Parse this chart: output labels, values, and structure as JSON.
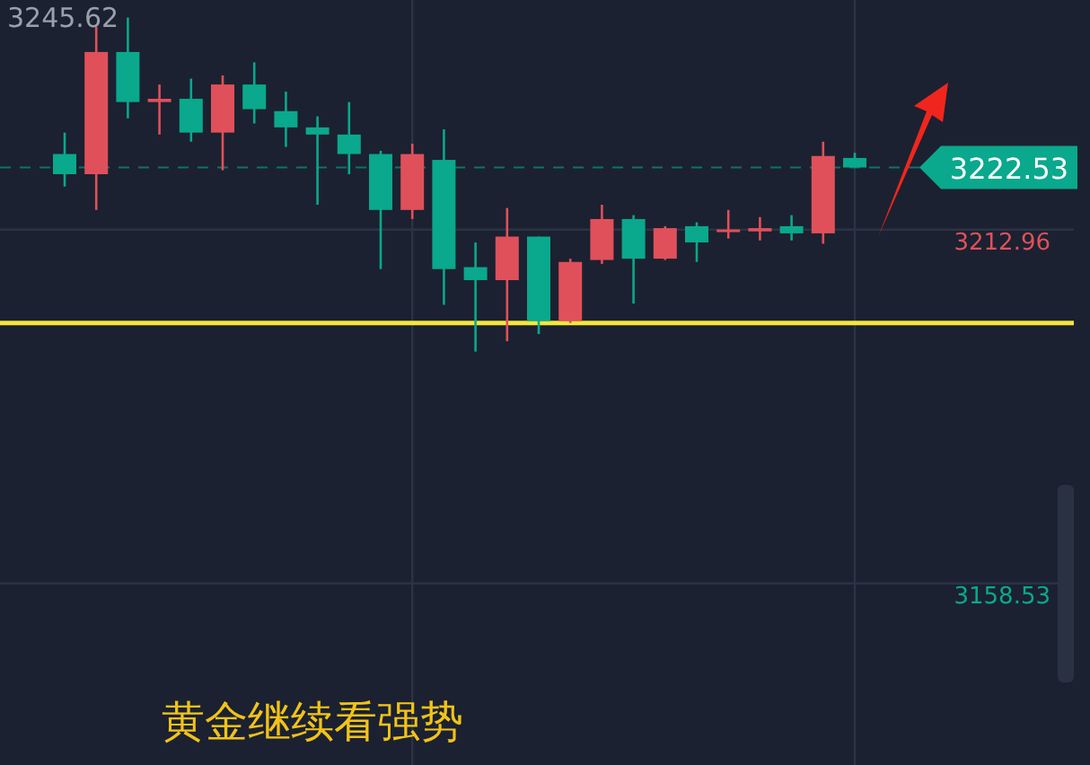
{
  "chart_data": {
    "type": "candlestick",
    "title": "黄金继续看强势",
    "categories": [
      null,
      null,
      null,
      null,
      null,
      null,
      null,
      null,
      null,
      null,
      null,
      null,
      null,
      null,
      null,
      null,
      null,
      null,
      null,
      null,
      null,
      null,
      null,
      null,
      null,
      null
    ],
    "ohlc": [
      [
        3224.6,
        3227.9,
        3219.6,
        3221.5
      ],
      [
        3221.5,
        3244.2,
        3216.0,
        3240.3
      ],
      [
        3240.3,
        3245.6,
        3230.1,
        3232.6
      ],
      [
        3232.6,
        3235.3,
        3227.6,
        3233.1
      ],
      [
        3233.1,
        3236.2,
        3226.5,
        3227.9
      ],
      [
        3227.9,
        3236.7,
        3222.1,
        3235.3
      ],
      [
        3235.3,
        3238.7,
        3229.3,
        3231.5
      ],
      [
        3231.2,
        3234.2,
        3225.7,
        3228.7
      ],
      [
        3228.7,
        3230.4,
        3216.8,
        3227.6
      ],
      [
        3227.6,
        3232.6,
        3221.5,
        3224.6
      ],
      [
        3224.6,
        3225.1,
        3206.9,
        3216.0
      ],
      [
        3216.0,
        3226.2,
        3214.6,
        3224.6
      ],
      [
        3223.7,
        3228.4,
        3201.4,
        3206.9
      ],
      [
        3207.2,
        3211.0,
        3194.2,
        3205.2
      ],
      [
        3205.2,
        3216.3,
        3195.8,
        3211.9
      ],
      [
        3211.9,
        3211.9,
        3196.9,
        3198.9
      ],
      [
        3198.9,
        3208.5,
        3198.6,
        3208.0
      ],
      [
        3208.3,
        3216.8,
        3207.7,
        3214.6
      ],
      [
        3214.6,
        3215.2,
        3201.6,
        3208.5
      ],
      [
        3208.5,
        3213.5,
        3208.3,
        3213.2
      ],
      [
        3213.5,
        3214.1,
        3208.0,
        3211.0
      ],
      [
        3212.7,
        3216.0,
        3211.6,
        3213.0
      ],
      [
        3212.7,
        3214.9,
        3211.3,
        3213.2
      ],
      [
        3213.5,
        3215.2,
        3211.3,
        3212.4
      ],
      [
        3212.4,
        3226.5,
        3210.8,
        3224.3
      ],
      [
        3224.0,
        3224.8,
        3222.53,
        3222.53
      ]
    ],
    "colors": [
      "#0aa88c",
      "#e0505a",
      "#0aa88c",
      "#e0505a",
      "#0aa88c",
      "#e0505a",
      "#0aa88c",
      "#0aa88c",
      "#0aa88c",
      "#0aa88c",
      "#0aa88c",
      "#e0505a",
      "#0aa88c",
      "#0aa88c",
      "#e0505a",
      "#0aa88c",
      "#e0505a",
      "#e0505a",
      "#0aa88c",
      "#e0505a",
      "#0aa88c",
      "#e0505a",
      "#e0505a",
      "#0aa88c",
      "#e0505a",
      "#0aa88c"
    ],
    "ylim": [
      3130.6,
      3248.3
    ],
    "yticks": [
      3212.96,
      3158.53
    ],
    "tick_labels": "y",
    "grid": true,
    "ref_lines": [
      {
        "axis": "y",
        "value": 3222.53,
        "label": "3222.53",
        "color": "#0aa88c",
        "line_style": "dashed"
      },
      {
        "axis": "y",
        "value": 3198.6,
        "color": "#f5e63c"
      }
    ],
    "annotations": [
      "3245.62"
    ]
  }
}
